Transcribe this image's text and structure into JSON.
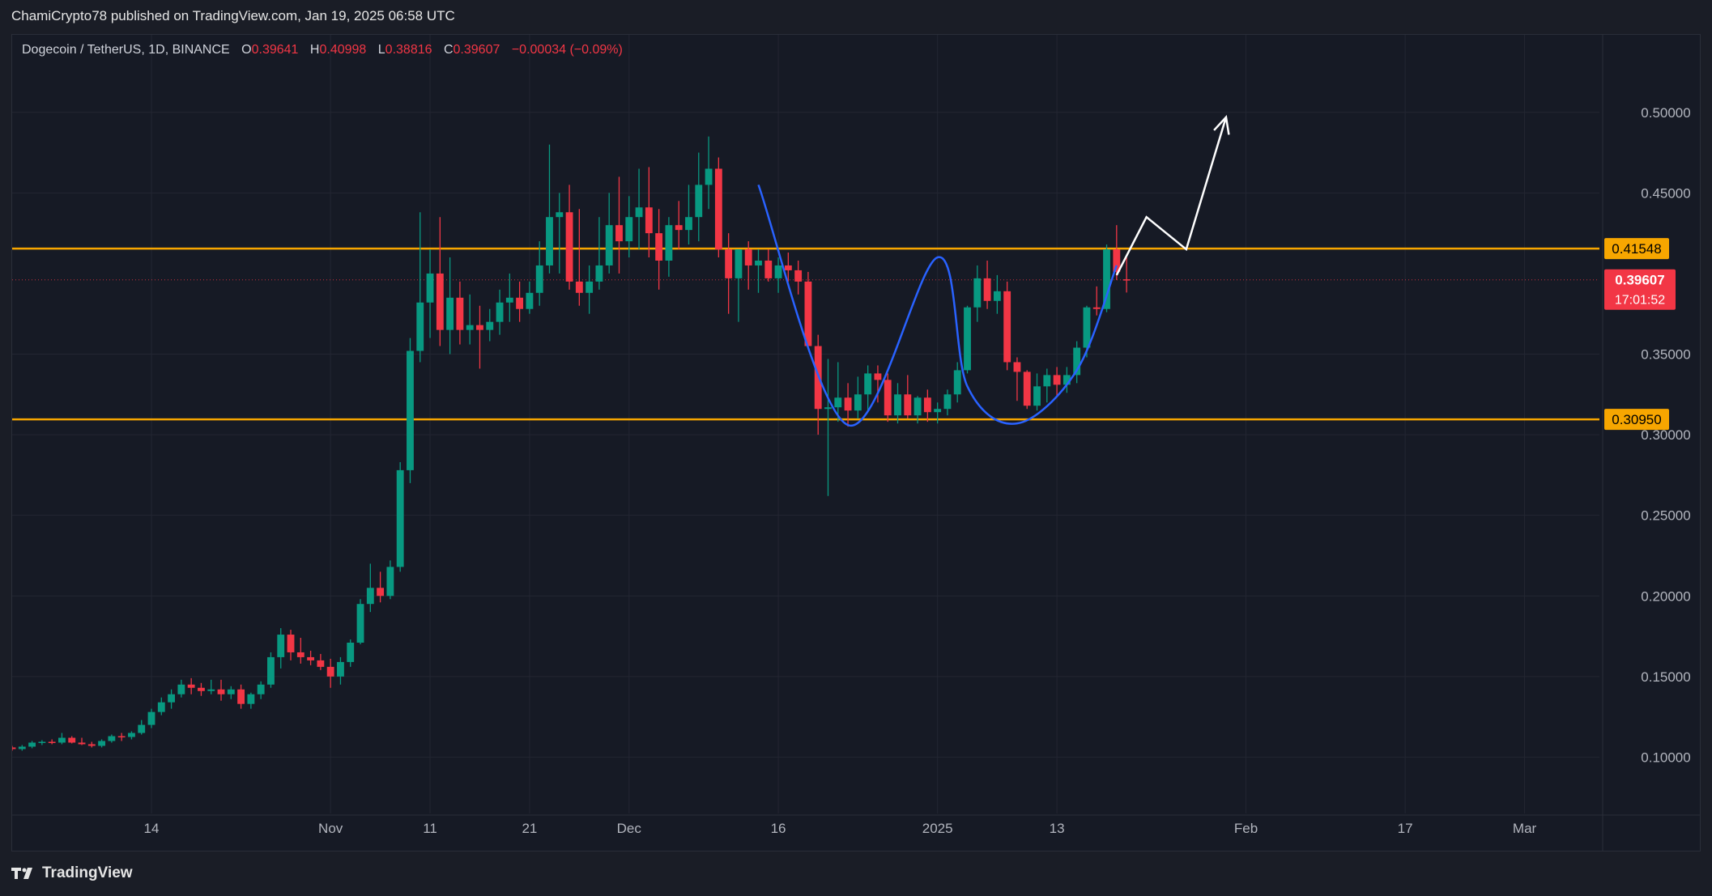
{
  "header": {
    "published_line": "ChamiCrypto78 published on TradingView.com, Jan 19, 2025 06:58 UTC"
  },
  "legend": {
    "symbol": "Dogecoin / TetherUS, 1D, BINANCE",
    "o_label": "O",
    "o_value": "0.39641",
    "h_label": "H",
    "h_value": "0.40998",
    "l_label": "L",
    "l_value": "0.38816",
    "c_label": "C",
    "c_value": "0.39607",
    "change": "−0.00034 (−0.09%)"
  },
  "footer": {
    "brand": "TradingView"
  },
  "colors": {
    "background": "#161a25",
    "up": "#089981",
    "down": "#f23645",
    "level_line": "#f7a600",
    "pattern_curve": "#2962ff",
    "projection": "#ffffff",
    "axis_text": "#b2b5be"
  },
  "chart_data": {
    "type": "candlestick",
    "title": "",
    "y_axis": {
      "ylim": [
        0.05,
        0.53
      ],
      "ticks": [
        "0.10000",
        "0.15000",
        "0.20000",
        "0.25000",
        "0.30000",
        "0.35000",
        "0.45000",
        "0.50000"
      ],
      "position": "right"
    },
    "x_axis": {
      "labels": [
        {
          "text": "14",
          "day": 14
        },
        {
          "text": "Nov",
          "day": 32
        },
        {
          "text": "11",
          "day": 42
        },
        {
          "text": "21",
          "day": 52
        },
        {
          "text": "Dec",
          "day": 62
        },
        {
          "text": "16",
          "day": 77
        },
        {
          "text": "2025",
          "day": 93
        },
        {
          "text": "13",
          "day": 105
        },
        {
          "text": "Feb",
          "day": 124
        },
        {
          "text": "17",
          "day": 140
        },
        {
          "text": "Mar",
          "day": 152
        }
      ],
      "day_range": [
        0,
        164
      ]
    },
    "grid": true,
    "price_lines": [
      {
        "value": 0.41548,
        "label": "0.41548"
      },
      {
        "value": 0.3095,
        "label": "0.30950"
      }
    ],
    "last_price": {
      "value": 0.39607,
      "label": "0.39607",
      "countdown": "17:01:52"
    },
    "ohlc": [
      [
        0.106,
        0.107,
        0.104,
        0.105
      ],
      [
        0.105,
        0.1075,
        0.104,
        0.1065
      ],
      [
        0.1065,
        0.11,
        0.1055,
        0.109
      ],
      [
        0.109,
        0.1105,
        0.1075,
        0.1095
      ],
      [
        0.1095,
        0.111,
        0.108,
        0.109
      ],
      [
        0.109,
        0.115,
        0.108,
        0.112
      ],
      [
        0.112,
        0.113,
        0.1085,
        0.109
      ],
      [
        0.109,
        0.112,
        0.1075,
        0.108
      ],
      [
        0.108,
        0.1095,
        0.106,
        0.107
      ],
      [
        0.107,
        0.111,
        0.106,
        0.11
      ],
      [
        0.11,
        0.114,
        0.109,
        0.113
      ],
      [
        0.113,
        0.115,
        0.11,
        0.1125
      ],
      [
        0.1125,
        0.116,
        0.111,
        0.115
      ],
      [
        0.115,
        0.123,
        0.114,
        0.12
      ],
      [
        0.12,
        0.13,
        0.118,
        0.128
      ],
      [
        0.128,
        0.137,
        0.126,
        0.134
      ],
      [
        0.134,
        0.142,
        0.13,
        0.139
      ],
      [
        0.139,
        0.148,
        0.137,
        0.145
      ],
      [
        0.145,
        0.149,
        0.139,
        0.143
      ],
      [
        0.143,
        0.146,
        0.138,
        0.141
      ],
      [
        0.141,
        0.148,
        0.139,
        0.142
      ],
      [
        0.142,
        0.148,
        0.135,
        0.139
      ],
      [
        0.139,
        0.144,
        0.136,
        0.142
      ],
      [
        0.142,
        0.145,
        0.13,
        0.133
      ],
      [
        0.133,
        0.14,
        0.13,
        0.139
      ],
      [
        0.139,
        0.147,
        0.136,
        0.145
      ],
      [
        0.145,
        0.165,
        0.143,
        0.162
      ],
      [
        0.162,
        0.18,
        0.155,
        0.176
      ],
      [
        0.176,
        0.179,
        0.16,
        0.165
      ],
      [
        0.165,
        0.174,
        0.158,
        0.162
      ],
      [
        0.162,
        0.166,
        0.157,
        0.16
      ],
      [
        0.16,
        0.164,
        0.154,
        0.156
      ],
      [
        0.156,
        0.161,
        0.143,
        0.15
      ],
      [
        0.15,
        0.162,
        0.145,
        0.159
      ],
      [
        0.159,
        0.173,
        0.156,
        0.171
      ],
      [
        0.171,
        0.198,
        0.17,
        0.195
      ],
      [
        0.195,
        0.22,
        0.19,
        0.205
      ],
      [
        0.205,
        0.215,
        0.196,
        0.2
      ],
      [
        0.2,
        0.222,
        0.198,
        0.218
      ],
      [
        0.218,
        0.283,
        0.215,
        0.278
      ],
      [
        0.278,
        0.36,
        0.27,
        0.352
      ],
      [
        0.352,
        0.438,
        0.345,
        0.382
      ],
      [
        0.382,
        0.415,
        0.36,
        0.4
      ],
      [
        0.4,
        0.435,
        0.355,
        0.365
      ],
      [
        0.365,
        0.41,
        0.35,
        0.385
      ],
      [
        0.385,
        0.395,
        0.356,
        0.365
      ],
      [
        0.365,
        0.387,
        0.356,
        0.368
      ],
      [
        0.368,
        0.38,
        0.341,
        0.365
      ],
      [
        0.365,
        0.378,
        0.358,
        0.37
      ],
      [
        0.37,
        0.39,
        0.362,
        0.382
      ],
      [
        0.382,
        0.4,
        0.37,
        0.385
      ],
      [
        0.385,
        0.395,
        0.37,
        0.378
      ],
      [
        0.378,
        0.395,
        0.375,
        0.388
      ],
      [
        0.388,
        0.42,
        0.38,
        0.405
      ],
      [
        0.405,
        0.48,
        0.4,
        0.435
      ],
      [
        0.435,
        0.45,
        0.4,
        0.438
      ],
      [
        0.438,
        0.455,
        0.39,
        0.395
      ],
      [
        0.395,
        0.44,
        0.38,
        0.388
      ],
      [
        0.388,
        0.405,
        0.375,
        0.395
      ],
      [
        0.395,
        0.435,
        0.39,
        0.405
      ],
      [
        0.405,
        0.45,
        0.4,
        0.43
      ],
      [
        0.43,
        0.46,
        0.4,
        0.42
      ],
      [
        0.42,
        0.448,
        0.41,
        0.435
      ],
      [
        0.435,
        0.465,
        0.415,
        0.441
      ],
      [
        0.441,
        0.466,
        0.41,
        0.425
      ],
      [
        0.425,
        0.44,
        0.39,
        0.408
      ],
      [
        0.408,
        0.435,
        0.398,
        0.43
      ],
      [
        0.43,
        0.445,
        0.415,
        0.427
      ],
      [
        0.427,
        0.455,
        0.418,
        0.435
      ],
      [
        0.435,
        0.475,
        0.42,
        0.455
      ],
      [
        0.455,
        0.485,
        0.44,
        0.465
      ],
      [
        0.465,
        0.472,
        0.41,
        0.415
      ],
      [
        0.415,
        0.425,
        0.375,
        0.397
      ],
      [
        0.397,
        0.415,
        0.37,
        0.415
      ],
      [
        0.415,
        0.42,
        0.39,
        0.405
      ],
      [
        0.405,
        0.415,
        0.388,
        0.408
      ],
      [
        0.408,
        0.415,
        0.395,
        0.397
      ],
      [
        0.397,
        0.41,
        0.388,
        0.405
      ],
      [
        0.405,
        0.413,
        0.395,
        0.402
      ],
      [
        0.402,
        0.408,
        0.387,
        0.395
      ],
      [
        0.395,
        0.401,
        0.353,
        0.355
      ],
      [
        0.355,
        0.362,
        0.3,
        0.316
      ],
      [
        0.316,
        0.347,
        0.262,
        0.317
      ],
      [
        0.317,
        0.345,
        0.308,
        0.323
      ],
      [
        0.323,
        0.332,
        0.305,
        0.315
      ],
      [
        0.315,
        0.336,
        0.31,
        0.325
      ],
      [
        0.325,
        0.343,
        0.315,
        0.338
      ],
      [
        0.338,
        0.343,
        0.32,
        0.334
      ],
      [
        0.334,
        0.338,
        0.308,
        0.312
      ],
      [
        0.312,
        0.332,
        0.307,
        0.325
      ],
      [
        0.325,
        0.337,
        0.31,
        0.312
      ],
      [
        0.312,
        0.324,
        0.307,
        0.323
      ],
      [
        0.323,
        0.328,
        0.308,
        0.314
      ],
      [
        0.314,
        0.32,
        0.307,
        0.316
      ],
      [
        0.316,
        0.328,
        0.312,
        0.325
      ],
      [
        0.325,
        0.345,
        0.32,
        0.34
      ],
      [
        0.34,
        0.38,
        0.338,
        0.379
      ],
      [
        0.379,
        0.405,
        0.37,
        0.397
      ],
      [
        0.397,
        0.408,
        0.378,
        0.383
      ],
      [
        0.383,
        0.399,
        0.375,
        0.389
      ],
      [
        0.389,
        0.395,
        0.34,
        0.345
      ],
      [
        0.345,
        0.348,
        0.321,
        0.339
      ],
      [
        0.339,
        0.34,
        0.316,
        0.318
      ],
      [
        0.318,
        0.338,
        0.315,
        0.33
      ],
      [
        0.33,
        0.341,
        0.32,
        0.337
      ],
      [
        0.337,
        0.342,
        0.324,
        0.331
      ],
      [
        0.331,
        0.342,
        0.326,
        0.337
      ],
      [
        0.337,
        0.358,
        0.332,
        0.354
      ],
      [
        0.354,
        0.38,
        0.348,
        0.379
      ],
      [
        0.379,
        0.392,
        0.374,
        0.378
      ],
      [
        0.378,
        0.418,
        0.376,
        0.415
      ],
      [
        0.415,
        0.43,
        0.396,
        0.401
      ],
      [
        0.3964,
        0.41,
        0.3882,
        0.3961
      ]
    ],
    "pattern_curves": [
      [
        [
          75,
          0.455
        ],
        [
          84,
          0.306
        ],
        [
          93,
          0.41
        ],
        [
          96,
          0.33
        ],
        [
          101,
          0.307
        ],
        [
          107,
          0.34
        ],
        [
          111,
          0.405
        ]
      ]
    ],
    "projection_path": [
      [
        111,
        0.399
      ],
      [
        114,
        0.435
      ],
      [
        118,
        0.415
      ],
      [
        122,
        0.497
      ]
    ]
  }
}
